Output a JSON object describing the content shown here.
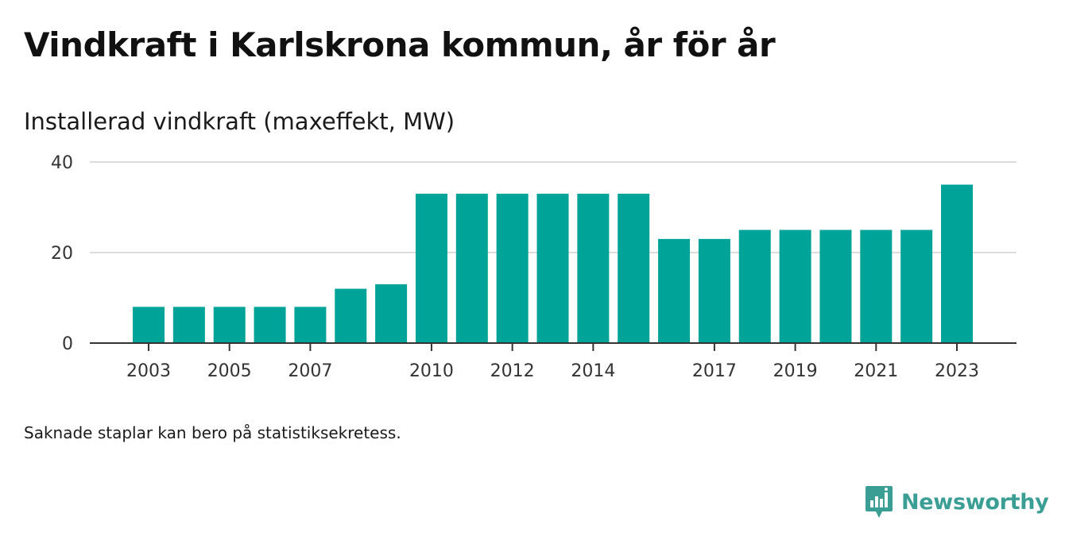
{
  "title": "Vindkraft i Karlskrona kommun, år för år",
  "subtitle": "Installerad vindkraft (maxeffekt, MW)",
  "footnote": "Saknade staplar kan bero på statistiksekretess.",
  "brand": {
    "name": "Newsworthy",
    "icon": "newsworthy-logo-icon",
    "color": "#3a9e95"
  },
  "chart_data": {
    "type": "bar",
    "categories": [
      "2003",
      "2004",
      "2005",
      "2006",
      "2007",
      "2008",
      "2009",
      "2010",
      "2011",
      "2012",
      "2013",
      "2014",
      "2015",
      "2016",
      "2017",
      "2018",
      "2019",
      "2020",
      "2021",
      "2022",
      "2023"
    ],
    "values": [
      8,
      8,
      8,
      8,
      8,
      12,
      13,
      33,
      33,
      33,
      33,
      33,
      33,
      23,
      23,
      25,
      25,
      25,
      25,
      25,
      35
    ],
    "x_tick_labels": [
      "2003",
      "2005",
      "2007",
      "2010",
      "2012",
      "2014",
      "2017",
      "2019",
      "2021",
      "2023"
    ],
    "y_ticks": [
      0,
      20,
      40
    ],
    "ylim": [
      0,
      40
    ],
    "grid": true,
    "bar_color": "#00a398"
  }
}
